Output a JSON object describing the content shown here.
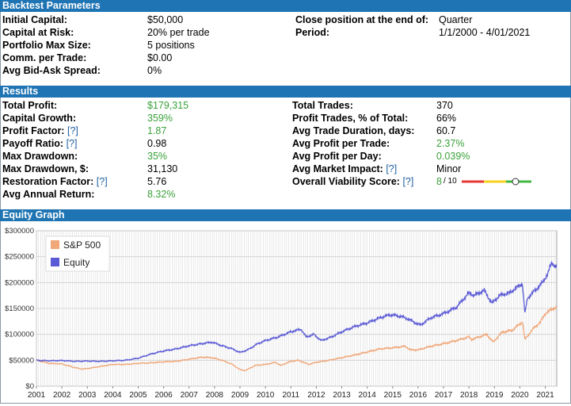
{
  "backtest": {
    "title": "Backtest Parameters",
    "left": [
      {
        "label": "Initial Capital:",
        "value": "$50,000"
      },
      {
        "label": "Capital at Risk:",
        "value": "20% per trade"
      },
      {
        "label": "Portfolio Max Size:",
        "value": "5 positions"
      },
      {
        "label": "Comm. per Trade:",
        "value": "$0.00"
      },
      {
        "label": "Avg Bid-Ask Spread:",
        "value": "0%"
      }
    ],
    "right": [
      {
        "label": "Close position at the end of:",
        "value": "Quarter"
      },
      {
        "label": "Period:",
        "value": "1/1/2000 - 4/01/2021"
      }
    ]
  },
  "results": {
    "title": "Results",
    "help": "[?]",
    "left": [
      {
        "label": "Total Profit:",
        "value": "$179,315",
        "green": true
      },
      {
        "label": "Capital Growth:",
        "value": "359%",
        "green": true
      },
      {
        "label": "Profit Factor:",
        "value": "1.87",
        "green": true,
        "help": true
      },
      {
        "label": "Payoff Ratio:",
        "value": "0.98",
        "help": true
      },
      {
        "label": "Max Drawdown:",
        "value": "35%",
        "green": true
      },
      {
        "label": "Max Drawdown, $:",
        "value": "31,130"
      },
      {
        "label": "Restoration Factor:",
        "value": "5.76",
        "help": true
      },
      {
        "label": "Avg Annual Return:",
        "value": "8.32%",
        "green": true
      }
    ],
    "right": [
      {
        "label": "Total Trades:",
        "value": "370"
      },
      {
        "label": "Profit Trades, % of Total:",
        "value": "66%"
      },
      {
        "label": "Avg Trade Duration, days:",
        "value": "60.7"
      },
      {
        "label": "Avg Profit per Trade:",
        "value": "2.37%",
        "green": true
      },
      {
        "label": "Avg Profit per Day:",
        "value": "0.039%",
        "green": true
      },
      {
        "label": "Avg Market Impact:",
        "value": "Minor",
        "help": true
      },
      {
        "label": "Overall Viability Score:",
        "value": "8",
        "green": true,
        "help": true,
        "suffix": "/ 10"
      }
    ],
    "viability_score": 8,
    "viability_max": 10
  },
  "equity": {
    "title": "Equity Graph",
    "colors": {
      "sp500": "#f0a779",
      "equity": "#5b5bd6",
      "grid": "#d9d9d9"
    },
    "chart_data": {
      "type": "line",
      "xlabel": "",
      "ylabel": "",
      "x_ticks": [
        "2001",
        "2002",
        "2003",
        "2004",
        "2005",
        "2006",
        "2007",
        "2008",
        "2009",
        "2010",
        "2011",
        "2012",
        "2013",
        "2014",
        "2015",
        "2016",
        "2017",
        "2018",
        "2019",
        "2020",
        "2021"
      ],
      "y_ticks": [
        "$0",
        "$50000",
        "$100000",
        "$150000",
        "$200000",
        "$250000",
        "$300000"
      ],
      "ylim": [
        0,
        300000
      ],
      "xlim": [
        2001,
        2021.45
      ],
      "legend_position": "top-left",
      "grid": true,
      "series": [
        {
          "name": "S&P 500",
          "points": [
            [
              2001.0,
              50000
            ],
            [
              2001.5,
              44000
            ],
            [
              2002.0,
              43000
            ],
            [
              2002.5,
              36000
            ],
            [
              2002.8,
              33000
            ],
            [
              2003.0,
              34000
            ],
            [
              2003.5,
              38000
            ],
            [
              2004.0,
              42000
            ],
            [
              2004.5,
              42000
            ],
            [
              2005.0,
              44000
            ],
            [
              2005.5,
              45000
            ],
            [
              2006.0,
              47000
            ],
            [
              2006.5,
              48000
            ],
            [
              2007.0,
              52000
            ],
            [
              2007.5,
              56000
            ],
            [
              2007.9,
              55000
            ],
            [
              2008.3,
              50000
            ],
            [
              2008.7,
              42000
            ],
            [
              2009.0,
              32000
            ],
            [
              2009.2,
              30000
            ],
            [
              2009.6,
              40000
            ],
            [
              2010.0,
              42000
            ],
            [
              2010.4,
              46000
            ],
            [
              2010.6,
              40000
            ],
            [
              2011.0,
              48000
            ],
            [
              2011.3,
              50000
            ],
            [
              2011.7,
              42000
            ],
            [
              2012.0,
              46000
            ],
            [
              2012.5,
              50000
            ],
            [
              2013.0,
              55000
            ],
            [
              2013.5,
              60000
            ],
            [
              2014.0,
              66000
            ],
            [
              2014.5,
              72000
            ],
            [
              2015.0,
              74000
            ],
            [
              2015.5,
              77000
            ],
            [
              2015.7,
              70000
            ],
            [
              2016.0,
              70000
            ],
            [
              2016.5,
              77000
            ],
            [
              2017.0,
              82000
            ],
            [
              2017.5,
              88000
            ],
            [
              2018.0,
              95000
            ],
            [
              2018.1,
              90000
            ],
            [
              2018.7,
              100000
            ],
            [
              2018.95,
              85000
            ],
            [
              2019.3,
              104000
            ],
            [
              2019.7,
              108000
            ],
            [
              2020.0,
              120000
            ],
            [
              2020.1,
              125000
            ],
            [
              2020.2,
              90000
            ],
            [
              2020.5,
              110000
            ],
            [
              2020.8,
              123000
            ],
            [
              2021.0,
              140000
            ],
            [
              2021.3,
              150000
            ],
            [
              2021.45,
              152000
            ]
          ]
        },
        {
          "name": "Equity",
          "points": [
            [
              2001.0,
              50000
            ],
            [
              2001.5,
              49000
            ],
            [
              2002.0,
              49500
            ],
            [
              2002.5,
              48000
            ],
            [
              2003.0,
              48500
            ],
            [
              2003.5,
              48000
            ],
            [
              2004.0,
              49000
            ],
            [
              2004.5,
              50000
            ],
            [
              2005.0,
              54000
            ],
            [
              2005.5,
              62000
            ],
            [
              2006.0,
              68000
            ],
            [
              2006.5,
              72000
            ],
            [
              2007.0,
              78000
            ],
            [
              2007.5,
              82000
            ],
            [
              2007.9,
              85000
            ],
            [
              2008.3,
              78000
            ],
            [
              2008.7,
              72000
            ],
            [
              2009.0,
              65000
            ],
            [
              2009.3,
              70000
            ],
            [
              2009.7,
              82000
            ],
            [
              2010.0,
              88000
            ],
            [
              2010.5,
              95000
            ],
            [
              2011.0,
              105000
            ],
            [
              2011.4,
              110000
            ],
            [
              2011.6,
              95000
            ],
            [
              2011.9,
              100000
            ],
            [
              2012.2,
              88000
            ],
            [
              2012.6,
              95000
            ],
            [
              2013.0,
              105000
            ],
            [
              2013.5,
              115000
            ],
            [
              2014.0,
              122000
            ],
            [
              2014.5,
              132000
            ],
            [
              2014.9,
              138000
            ],
            [
              2015.3,
              135000
            ],
            [
              2015.6,
              130000
            ],
            [
              2015.9,
              122000
            ],
            [
              2016.1,
              118000
            ],
            [
              2016.5,
              132000
            ],
            [
              2017.0,
              140000
            ],
            [
              2017.5,
              152000
            ],
            [
              2018.0,
              180000
            ],
            [
              2018.2,
              175000
            ],
            [
              2018.6,
              185000
            ],
            [
              2018.9,
              160000
            ],
            [
              2019.2,
              175000
            ],
            [
              2019.6,
              180000
            ],
            [
              2020.0,
              195000
            ],
            [
              2020.1,
              198000
            ],
            [
              2020.2,
              140000
            ],
            [
              2020.3,
              170000
            ],
            [
              2020.6,
              185000
            ],
            [
              2020.9,
              200000
            ],
            [
              2021.1,
              218000
            ],
            [
              2021.25,
              238000
            ],
            [
              2021.45,
              230000
            ]
          ]
        }
      ]
    }
  }
}
